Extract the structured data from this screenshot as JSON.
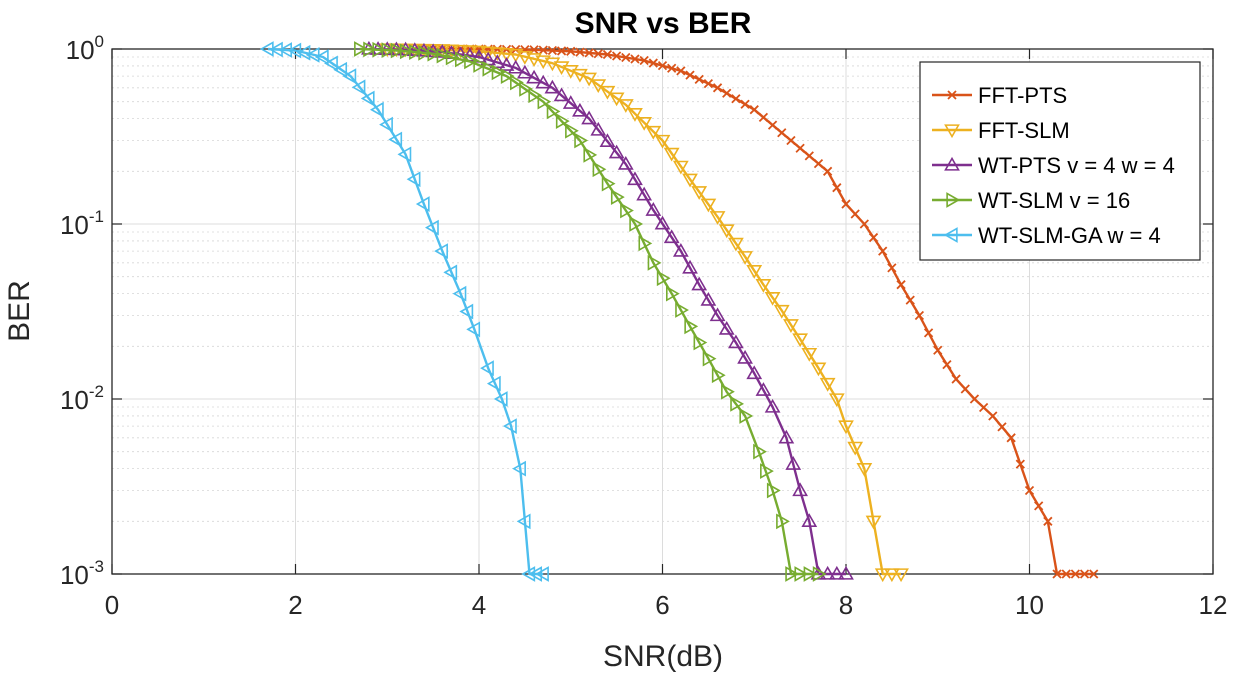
{
  "chart_data": {
    "type": "line",
    "title": "SNR vs BER",
    "xlabel": "SNR(dB)",
    "ylabel": "BER",
    "xlim": [
      0,
      12
    ],
    "ylim": [
      0.001,
      1
    ],
    "yscale": "log",
    "grid": true,
    "legend_position": "top-right",
    "x_ticks": [
      0,
      2,
      4,
      6,
      8,
      10,
      12
    ],
    "x_tick_labels": [
      "0",
      "2",
      "4",
      "6",
      "8",
      "10",
      "12"
    ],
    "y_ticks": [
      1,
      0.1,
      0.01,
      0.001
    ],
    "y_tick_labels": [
      {
        "base": "10",
        "exp": "0"
      },
      {
        "base": "10",
        "exp": "-1"
      },
      {
        "base": "10",
        "exp": "-2"
      },
      {
        "base": "10",
        "exp": "-3"
      }
    ],
    "series": [
      {
        "name": "FFT-PTS",
        "color": "#d95319",
        "marker": "x",
        "points": [
          [
            3.3,
            1
          ],
          [
            4.0,
            1
          ],
          [
            4.6,
            0.99
          ],
          [
            5.0,
            0.97
          ],
          [
            5.4,
            0.93
          ],
          [
            5.8,
            0.86
          ],
          [
            6.2,
            0.75
          ],
          [
            6.6,
            0.6
          ],
          [
            7.0,
            0.45
          ],
          [
            7.4,
            0.3
          ],
          [
            7.8,
            0.2
          ],
          [
            8.0,
            0.13
          ],
          [
            8.2,
            0.1
          ],
          [
            8.4,
            0.07
          ],
          [
            8.6,
            0.045
          ],
          [
            8.8,
            0.03
          ],
          [
            9.0,
            0.019
          ],
          [
            9.2,
            0.013
          ],
          [
            9.4,
            0.01
          ],
          [
            9.6,
            0.008
          ],
          [
            9.8,
            0.006
          ],
          [
            10.0,
            0.003
          ],
          [
            10.2,
            0.002
          ],
          [
            10.3,
            0.001
          ],
          [
            10.7,
            0.001
          ]
        ]
      },
      {
        "name": "FFT-SLM",
        "color": "#edb120",
        "marker": "triangle-down",
        "points": [
          [
            3.0,
            1
          ],
          [
            3.6,
            0.99
          ],
          [
            4.0,
            0.97
          ],
          [
            4.4,
            0.93
          ],
          [
            4.8,
            0.83
          ],
          [
            5.2,
            0.68
          ],
          [
            5.6,
            0.48
          ],
          [
            6.0,
            0.3
          ],
          [
            6.3,
            0.18
          ],
          [
            6.6,
            0.11
          ],
          [
            6.9,
            0.065
          ],
          [
            7.1,
            0.045
          ],
          [
            7.3,
            0.032
          ],
          [
            7.5,
            0.022
          ],
          [
            7.7,
            0.015
          ],
          [
            7.9,
            0.01
          ],
          [
            8.0,
            0.007
          ],
          [
            8.2,
            0.004
          ],
          [
            8.3,
            0.002
          ],
          [
            8.4,
            0.001
          ],
          [
            8.6,
            0.001
          ]
        ]
      },
      {
        "name": "WT-PTS v = 4 w = 4",
        "color": "#7e2f8e",
        "marker": "triangle-up",
        "points": [
          [
            2.8,
            1
          ],
          [
            3.2,
            0.99
          ],
          [
            3.6,
            0.96
          ],
          [
            4.0,
            0.9
          ],
          [
            4.4,
            0.78
          ],
          [
            4.8,
            0.6
          ],
          [
            5.2,
            0.4
          ],
          [
            5.6,
            0.22
          ],
          [
            5.9,
            0.12
          ],
          [
            6.2,
            0.07
          ],
          [
            6.4,
            0.045
          ],
          [
            6.6,
            0.03
          ],
          [
            6.8,
            0.021
          ],
          [
            7.0,
            0.014
          ],
          [
            7.2,
            0.009
          ],
          [
            7.35,
            0.006
          ],
          [
            7.5,
            0.003
          ],
          [
            7.6,
            0.002
          ],
          [
            7.7,
            0.001
          ],
          [
            8.0,
            0.001
          ]
        ]
      },
      {
        "name": "WT-SLM v = 16",
        "color": "#77ac30",
        "marker": "triangle-right",
        "points": [
          [
            2.7,
            1
          ],
          [
            3.1,
            0.98
          ],
          [
            3.5,
            0.94
          ],
          [
            3.9,
            0.85
          ],
          [
            4.3,
            0.7
          ],
          [
            4.7,
            0.5
          ],
          [
            5.1,
            0.3
          ],
          [
            5.4,
            0.17
          ],
          [
            5.7,
            0.1
          ],
          [
            5.9,
            0.06
          ],
          [
            6.1,
            0.04
          ],
          [
            6.3,
            0.026
          ],
          [
            6.5,
            0.017
          ],
          [
            6.7,
            0.011
          ],
          [
            6.9,
            0.008
          ],
          [
            7.05,
            0.005
          ],
          [
            7.2,
            0.003
          ],
          [
            7.3,
            0.002
          ],
          [
            7.4,
            0.001
          ],
          [
            7.7,
            0.001
          ]
        ]
      },
      {
        "name": "WT-SLM-GA w = 4",
        "color": "#4dbeee",
        "marker": "triangle-left",
        "points": [
          [
            1.7,
            1
          ],
          [
            2.0,
            0.98
          ],
          [
            2.3,
            0.9
          ],
          [
            2.6,
            0.7
          ],
          [
            2.9,
            0.45
          ],
          [
            3.2,
            0.25
          ],
          [
            3.4,
            0.13
          ],
          [
            3.6,
            0.07
          ],
          [
            3.8,
            0.04
          ],
          [
            3.95,
            0.025
          ],
          [
            4.1,
            0.015
          ],
          [
            4.25,
            0.01
          ],
          [
            4.35,
            0.007
          ],
          [
            4.45,
            0.004
          ],
          [
            4.5,
            0.002
          ],
          [
            4.55,
            0.001
          ],
          [
            4.7,
            0.001
          ]
        ]
      }
    ]
  }
}
